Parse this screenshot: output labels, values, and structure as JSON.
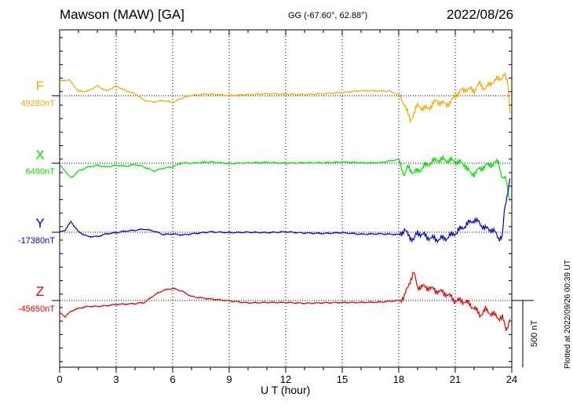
{
  "header": {
    "station": "Mawson (MAW)  [GA]",
    "coords": "GG (-67.60°,  62.88°)",
    "date": "2022/08/26"
  },
  "footer_note": "Plotted at 2022/09/26 00:39 UT",
  "colors": {
    "F": "#f5a800",
    "X": "#00e000",
    "Y": "#0000d0",
    "Z": "#e00000"
  },
  "chart_data": {
    "type": "line",
    "title": "Mawson (MAW)  [GA]",
    "xlabel": "U T (hour)",
    "xlim": [
      0,
      24
    ],
    "x_ticks": [
      0,
      3,
      6,
      9,
      12,
      15,
      18,
      21,
      24
    ],
    "grid": "dotted vertical every 3 h",
    "scale_bar": "500 nT",
    "series": [
      {
        "name": "F",
        "baseline_label": "49280nT",
        "color": "#f5a800",
        "points": [
          [
            0,
            37
          ],
          [
            0.5,
            41
          ],
          [
            1,
            11
          ],
          [
            1.5,
            12
          ],
          [
            2,
            25
          ],
          [
            2.5,
            12
          ],
          [
            3,
            25
          ],
          [
            3.5,
            13
          ],
          [
            4,
            5
          ],
          [
            4.5,
            -12
          ],
          [
            5,
            -16
          ],
          [
            5.5,
            -12
          ],
          [
            6,
            -17
          ],
          [
            6.5,
            -6
          ],
          [
            7,
            1
          ],
          [
            7.5,
            3
          ],
          [
            8,
            4
          ],
          [
            9,
            1
          ],
          [
            10,
            3
          ],
          [
            11,
            5
          ],
          [
            12,
            4
          ],
          [
            13,
            3
          ],
          [
            14,
            5
          ],
          [
            15,
            8
          ],
          [
            16,
            13
          ],
          [
            17,
            12
          ],
          [
            17.5,
            12
          ],
          [
            18,
            2
          ],
          [
            18.3,
            -20
          ],
          [
            18.6,
            -64
          ],
          [
            18.8,
            -44
          ],
          [
            19,
            -26
          ],
          [
            19.5,
            -34
          ],
          [
            20,
            -14
          ],
          [
            20.5,
            -22
          ],
          [
            20.8,
            -16
          ],
          [
            21,
            2
          ],
          [
            21.5,
            17
          ],
          [
            22,
            14
          ],
          [
            22.3,
            30
          ],
          [
            22.6,
            18
          ],
          [
            23,
            37
          ],
          [
            23.3,
            42
          ],
          [
            23.6,
            53
          ],
          [
            23.8,
            30
          ],
          [
            23.9,
            -45
          ]
        ]
      },
      {
        "name": "X",
        "baseline_label": "6490nT",
        "color": "#00e000",
        "points": [
          [
            0,
            -5
          ],
          [
            0.3,
            -20
          ],
          [
            0.6,
            -38
          ],
          [
            1,
            -20
          ],
          [
            1.5,
            -10
          ],
          [
            2,
            -5
          ],
          [
            2.5,
            -10
          ],
          [
            3,
            -5
          ],
          [
            3.5,
            -8
          ],
          [
            4,
            -3
          ],
          [
            4.5,
            -10
          ],
          [
            5,
            -20
          ],
          [
            5.5,
            -13
          ],
          [
            6,
            -9
          ],
          [
            6.5,
            1
          ],
          [
            7,
            0
          ],
          [
            8,
            3
          ],
          [
            9,
            -1
          ],
          [
            10,
            1
          ],
          [
            11,
            2
          ],
          [
            12,
            0
          ],
          [
            13,
            1
          ],
          [
            14,
            1
          ],
          [
            15,
            3
          ],
          [
            16,
            1
          ],
          [
            17,
            1
          ],
          [
            18,
            10
          ],
          [
            18.3,
            -30
          ],
          [
            18.5,
            -10
          ],
          [
            18.8,
            -24
          ],
          [
            19,
            -20
          ],
          [
            19.5,
            -4
          ],
          [
            20,
            9
          ],
          [
            20.5,
            8
          ],
          [
            21,
            5
          ],
          [
            21.5,
            -3
          ],
          [
            21.8,
            -27
          ],
          [
            22,
            -26
          ],
          [
            22.5,
            -9
          ],
          [
            23,
            -1
          ],
          [
            23.3,
            3
          ],
          [
            23.5,
            -37
          ],
          [
            23.7,
            -44
          ],
          [
            23.9,
            -97
          ]
        ]
      },
      {
        "name": "Y",
        "baseline_label": "-17380nT",
        "color": "#0000d0",
        "points": [
          [
            0,
            0
          ],
          [
            0.3,
            6
          ],
          [
            0.6,
            27
          ],
          [
            1,
            1
          ],
          [
            1.5,
            -11
          ],
          [
            2,
            -11
          ],
          [
            2.5,
            -4
          ],
          [
            3,
            -1
          ],
          [
            3.5,
            3
          ],
          [
            4,
            5
          ],
          [
            4.5,
            8
          ],
          [
            5,
            3
          ],
          [
            5.5,
            -6
          ],
          [
            6,
            -4
          ],
          [
            6.5,
            -7
          ],
          [
            7,
            -4
          ],
          [
            8,
            1
          ],
          [
            9,
            -1
          ],
          [
            10,
            0
          ],
          [
            11,
            -1
          ],
          [
            12,
            1
          ],
          [
            13,
            -2
          ],
          [
            14,
            -3
          ],
          [
            15,
            -1
          ],
          [
            16,
            -5
          ],
          [
            17,
            -4
          ],
          [
            18,
            -6
          ],
          [
            18.3,
            5
          ],
          [
            18.5,
            -7
          ],
          [
            18.8,
            -20
          ],
          [
            19,
            0
          ],
          [
            19.5,
            -12
          ],
          [
            20,
            -18
          ],
          [
            20.5,
            -15
          ],
          [
            21,
            -2
          ],
          [
            21.5,
            16
          ],
          [
            22,
            32
          ],
          [
            22.3,
            23
          ],
          [
            22.6,
            9
          ],
          [
            23,
            6
          ],
          [
            23.3,
            -15
          ],
          [
            23.5,
            -9
          ],
          [
            23.6,
            48
          ],
          [
            23.9,
            137
          ]
        ]
      },
      {
        "name": "Z",
        "baseline_label": "-45650nT",
        "color": "#e00000",
        "points": [
          [
            0,
            -31
          ],
          [
            0.3,
            -41
          ],
          [
            0.6,
            -27
          ],
          [
            1,
            -20
          ],
          [
            1.5,
            -15
          ],
          [
            2,
            -15
          ],
          [
            2.5,
            -13
          ],
          [
            3,
            -10
          ],
          [
            3.5,
            -9
          ],
          [
            4,
            -8
          ],
          [
            4.5,
            -5
          ],
          [
            5,
            13
          ],
          [
            5.5,
            26
          ],
          [
            6,
            31
          ],
          [
            6.5,
            24
          ],
          [
            7,
            10
          ],
          [
            8,
            4
          ],
          [
            9,
            -1
          ],
          [
            10,
            -6
          ],
          [
            11,
            -5
          ],
          [
            12,
            -5
          ],
          [
            13,
            -7
          ],
          [
            14,
            -6
          ],
          [
            15,
            -5
          ],
          [
            16,
            -5
          ],
          [
            17,
            -4
          ],
          [
            18,
            0
          ],
          [
            18.3,
            9
          ],
          [
            18.6,
            51
          ],
          [
            18.8,
            70
          ],
          [
            19,
            35
          ],
          [
            19.5,
            34
          ],
          [
            20,
            25
          ],
          [
            20.5,
            18
          ],
          [
            21,
            0
          ],
          [
            21.5,
            -2
          ],
          [
            22,
            -18
          ],
          [
            22.3,
            -37
          ],
          [
            22.6,
            -24
          ],
          [
            23,
            -35
          ],
          [
            23.3,
            -44
          ],
          [
            23.5,
            -44
          ],
          [
            23.7,
            -74
          ],
          [
            23.9,
            -48
          ]
        ]
      }
    ]
  }
}
